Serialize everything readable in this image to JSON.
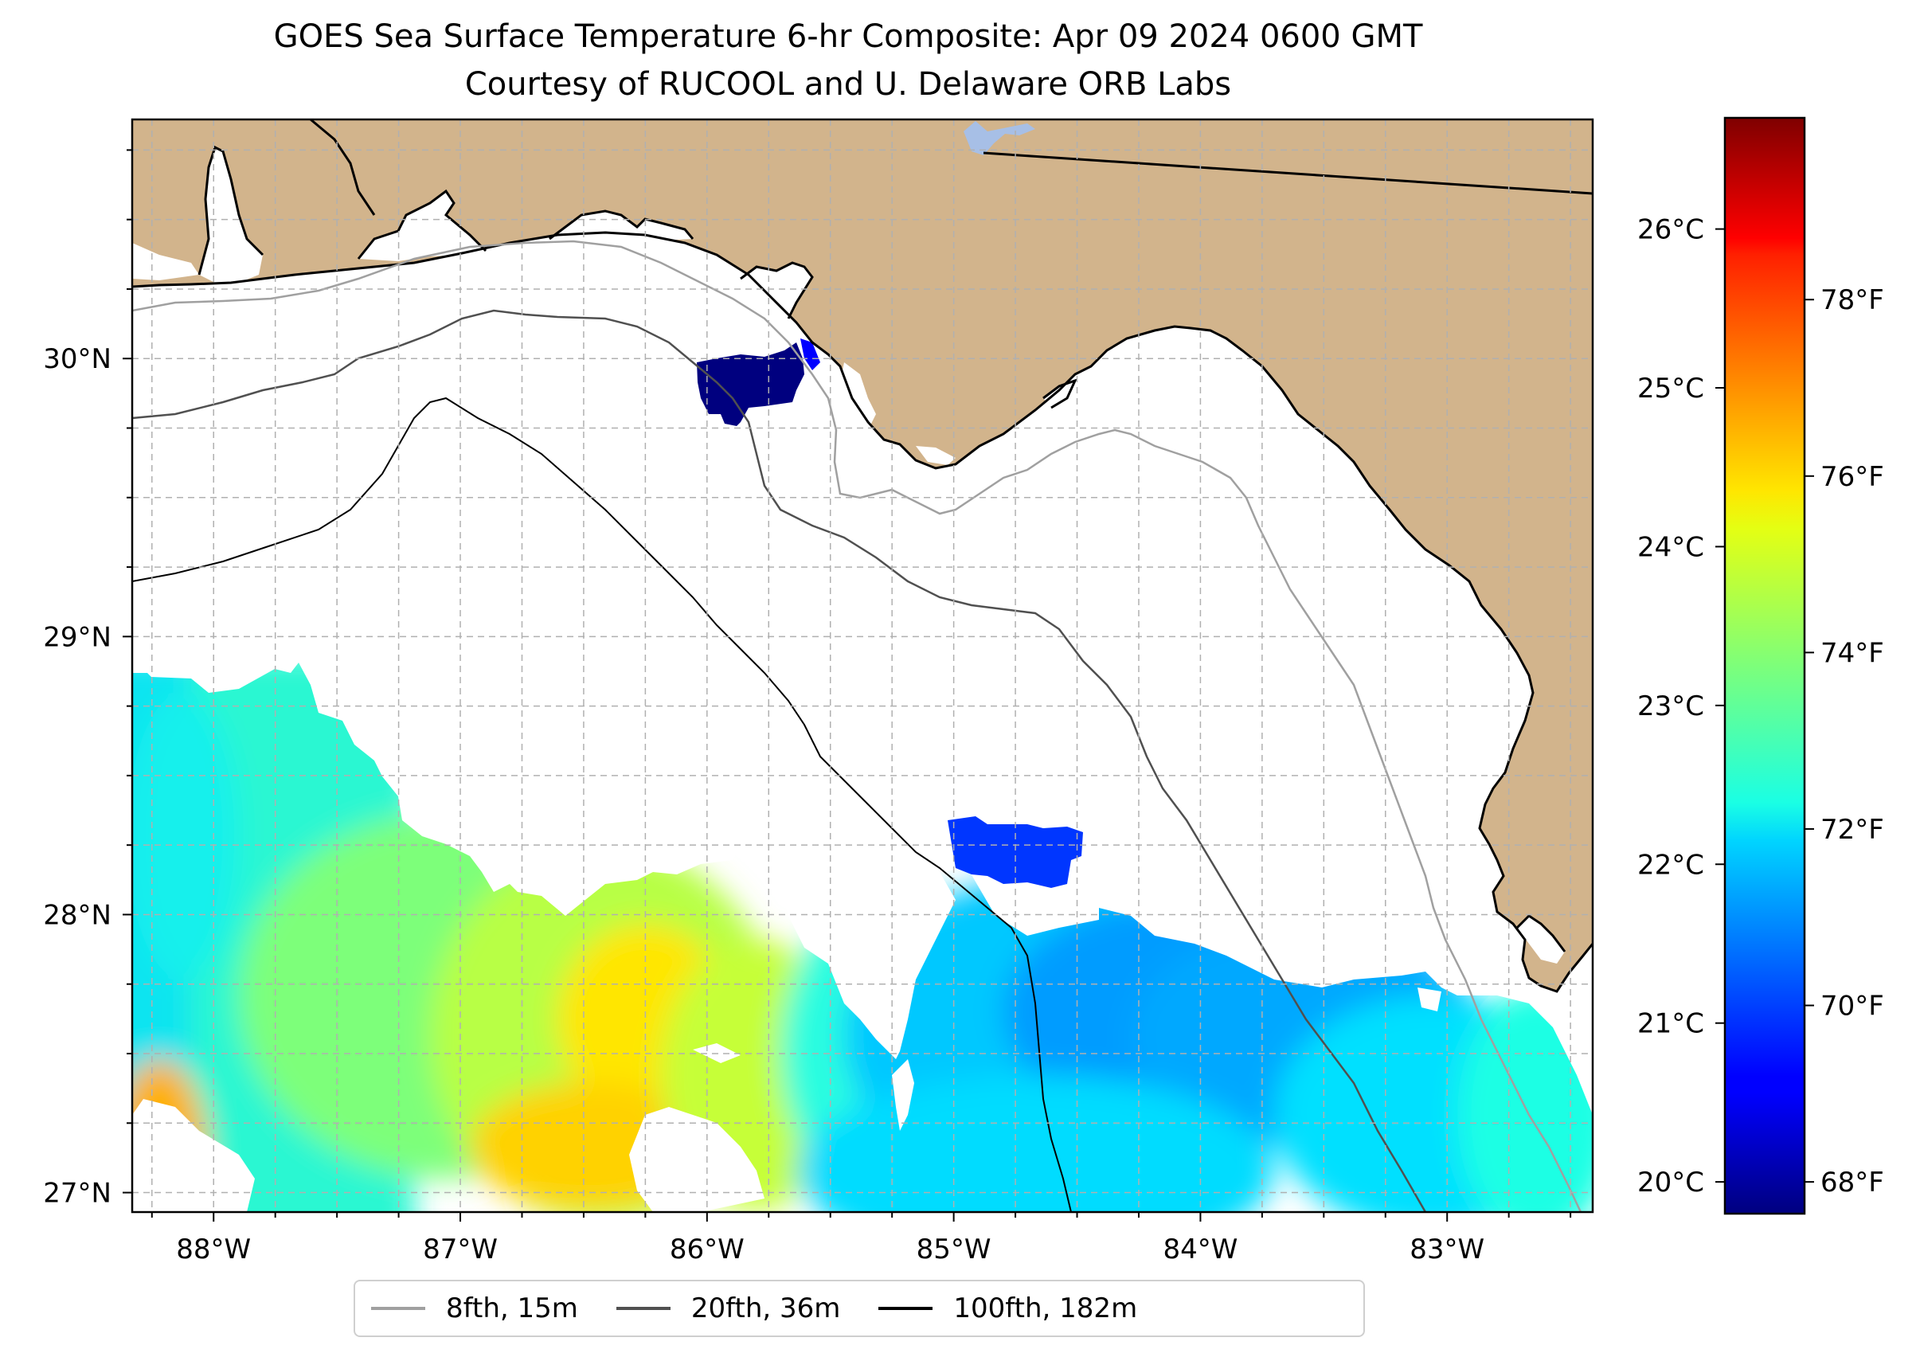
{
  "title": {
    "line1": "GOES Sea Surface Temperature 6-hr Composite: Apr 09 2024 0600 GMT",
    "line2": "Courtesy of RUCOOL and U. Delaware ORB Labs"
  },
  "colors": {
    "land": "#d2b48c",
    "ocean_nodata": "#ffffff",
    "gridline": "#b0b0b0",
    "coastline": "#000000",
    "lake": "#a7bfe6"
  },
  "map": {
    "lon_range": [
      -88.33,
      -82.41
    ],
    "lat_range": [
      26.93,
      30.86
    ],
    "lon_ticks": [
      {
        "value": -88,
        "label": "88°W"
      },
      {
        "value": -87,
        "label": "87°W"
      },
      {
        "value": -86,
        "label": "86°W"
      },
      {
        "value": -85,
        "label": "85°W"
      },
      {
        "value": -84,
        "label": "84°W"
      },
      {
        "value": -83,
        "label": "83°W"
      }
    ],
    "lat_ticks": [
      {
        "value": 27,
        "label": "27°N"
      },
      {
        "value": 28,
        "label": "28°N"
      },
      {
        "value": 29,
        "label": "29°N"
      },
      {
        "value": 30,
        "label": "30°N"
      }
    ],
    "gridlines": "dashed"
  },
  "colorbar": {
    "colormap": "jet",
    "range_c": [
      19.8,
      26.7
    ],
    "celsius_ticks": [
      {
        "value": 20,
        "label": "20°C"
      },
      {
        "value": 21,
        "label": "21°C"
      },
      {
        "value": 22,
        "label": "22°C"
      },
      {
        "value": 23,
        "label": "23°C"
      },
      {
        "value": 24,
        "label": "24°C"
      },
      {
        "value": 25,
        "label": "25°C"
      },
      {
        "value": 26,
        "label": "26°C"
      }
    ],
    "fahrenheit_ticks": [
      {
        "value": 68,
        "label": "68°F"
      },
      {
        "value": 70,
        "label": "70°F"
      },
      {
        "value": 72,
        "label": "72°F"
      },
      {
        "value": 74,
        "label": "74°F"
      },
      {
        "value": 76,
        "label": "76°F"
      },
      {
        "value": 78,
        "label": "78°F"
      }
    ]
  },
  "legend": {
    "items": [
      {
        "label": "8fth, 15m",
        "color": "#a0a0a0"
      },
      {
        "label": "20fth, 36m",
        "color": "#505050"
      },
      {
        "label": "100fth, 182m",
        "color": "#000000"
      }
    ]
  }
}
